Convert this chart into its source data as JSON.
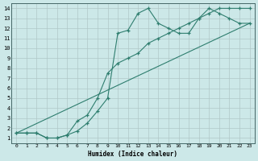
{
  "xlabel": "Humidex (Indice chaleur)",
  "xlim": [
    -0.5,
    23.5
  ],
  "ylim": [
    0.5,
    14.5
  ],
  "xticks": [
    0,
    1,
    2,
    3,
    4,
    5,
    6,
    7,
    8,
    9,
    10,
    11,
    12,
    13,
    14,
    15,
    16,
    17,
    18,
    19,
    20,
    21,
    22,
    23
  ],
  "yticks": [
    1,
    2,
    3,
    4,
    5,
    6,
    7,
    8,
    9,
    10,
    11,
    12,
    13,
    14
  ],
  "bg_color": "#cce8e8",
  "line_color": "#2e7d6e",
  "grid_color": "#b0c8c8",
  "line1_x": [
    0,
    1,
    2,
    3,
    4,
    5,
    6,
    7,
    8,
    9,
    10,
    11,
    12,
    13,
    14,
    15,
    16,
    17,
    18,
    19,
    20,
    21,
    22,
    23
  ],
  "line1_y": [
    1.5,
    1.5,
    1.5,
    1.0,
    1.0,
    1.3,
    2.7,
    3.3,
    5.0,
    7.5,
    8.5,
    9.0,
    9.5,
    10.5,
    11.0,
    11.5,
    12.0,
    12.5,
    13.0,
    13.5,
    14.0,
    14.0,
    14.0,
    14.0
  ],
  "line2_x": [
    0,
    1,
    2,
    3,
    4,
    5,
    6,
    7,
    8,
    9,
    10,
    11,
    12,
    13,
    14,
    15,
    16,
    17,
    18,
    19,
    20,
    21,
    22,
    23
  ],
  "line2_y": [
    1.5,
    1.5,
    1.5,
    1.0,
    1.0,
    1.3,
    1.7,
    2.5,
    3.7,
    5.0,
    11.5,
    11.8,
    13.5,
    14.0,
    12.5,
    12.0,
    11.5,
    11.5,
    13.0,
    14.0,
    13.5,
    13.0,
    12.5,
    12.5
  ],
  "line3_x": [
    0,
    23
  ],
  "line3_y": [
    1.5,
    12.5
  ],
  "fontname": "monospace"
}
